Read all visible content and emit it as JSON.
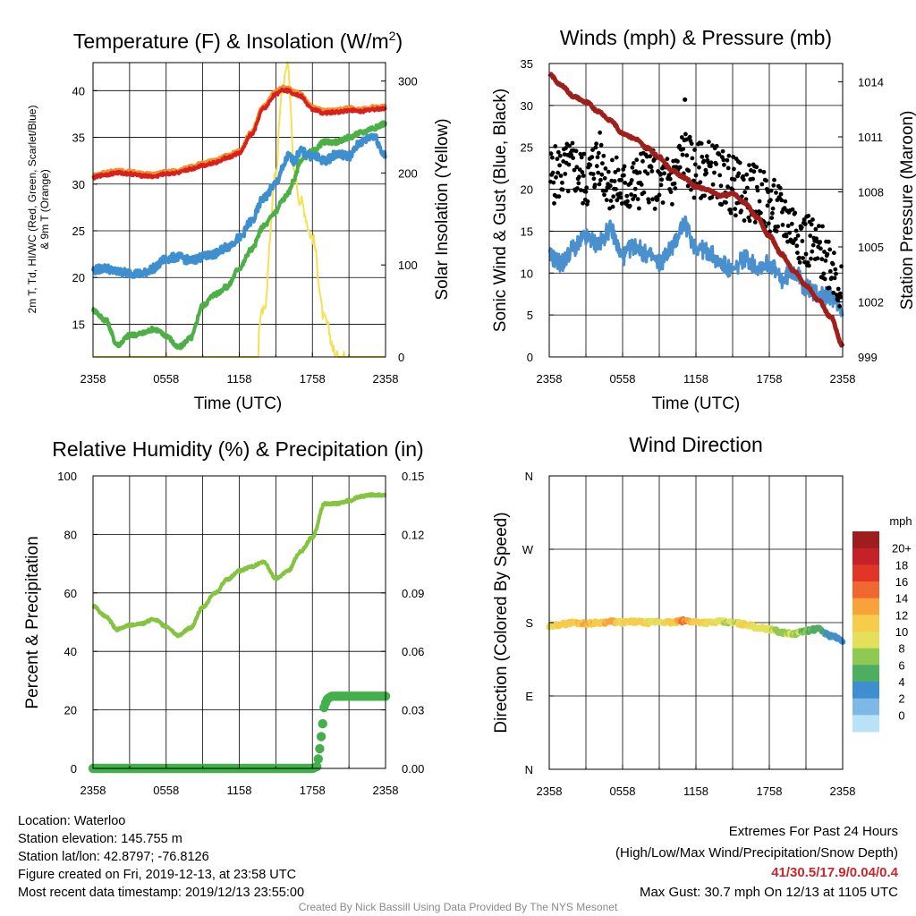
{
  "chart_data": [
    {
      "type": "line",
      "title": "Temperature (F) & Insolation (W/m²)",
      "ylabel": "2m T, T_d, HI/WC (Red, Green, Scarlet/Blue) & 9m T (Orange)",
      "ylabel_line1": "2m T, Td, HI/WC (Red, Green, Scarlet/Blue)",
      "ylabel_line2": "& 9m T (Orange)",
      "y2label": "Solar Insolation (Yellow)",
      "xlabel": "Time (UTC)",
      "x_ticks": [
        "2358",
        "0558",
        "1158",
        "1758",
        "2358"
      ],
      "ylim": [
        11.5,
        43
      ],
      "y2lim": [
        0,
        320
      ],
      "y_ticks": [
        15,
        20,
        25,
        30,
        35,
        40
      ],
      "y2_ticks": [
        0,
        100,
        200,
        300
      ],
      "x_hours": [
        0,
        1,
        2,
        3,
        4,
        5,
        6,
        7,
        8,
        9,
        10,
        11,
        12,
        13,
        14,
        15,
        15.5,
        16,
        16.5,
        17,
        18,
        19,
        20,
        21,
        22,
        23,
        24
      ],
      "series": [
        {
          "key": "t9m",
          "color": "#f4902b",
          "axis": "left",
          "values": [
            30.9,
            31.2,
            31.4,
            31.3,
            31.1,
            31.0,
            31.3,
            31.4,
            31.8,
            32.2,
            32.5,
            33.0,
            33.5,
            35.5,
            38.3,
            39.8,
            40.3,
            40.2,
            39.9,
            39.6,
            38.2,
            37.8,
            37.9,
            38.1,
            38.0,
            38.2,
            38.3
          ]
        },
        {
          "key": "t2m",
          "color": "#d8211e",
          "axis": "left",
          "values": [
            30.7,
            31.0,
            31.2,
            31.1,
            30.9,
            30.8,
            31.1,
            31.2,
            31.6,
            32.0,
            32.3,
            32.8,
            33.3,
            35.3,
            38.1,
            39.6,
            40.1,
            40.0,
            39.7,
            39.4,
            38.0,
            37.6,
            37.7,
            37.9,
            37.8,
            38.0,
            38.1
          ]
        },
        {
          "key": "hiwc",
          "color": "#3e8fcf",
          "axis": "left",
          "values": [
            20.8,
            21.0,
            20.6,
            20.5,
            20.4,
            21.0,
            22.0,
            22.2,
            21.8,
            22.2,
            22.5,
            23.3,
            24.2,
            26.0,
            28.5,
            30.0,
            31.5,
            33.0,
            32.5,
            33.5,
            33.0,
            32.5,
            33.2,
            33.0,
            34.5,
            35.2,
            33.0
          ]
        },
        {
          "key": "td",
          "color": "#4db046",
          "axis": "left",
          "values": [
            16.5,
            15.5,
            12.8,
            13.8,
            14.0,
            14.5,
            13.8,
            12.5,
            13.5,
            17.0,
            18.2,
            19.0,
            21.0,
            23.0,
            25.5,
            27.0,
            28.2,
            29.0,
            30.5,
            32.5,
            33.5,
            34.5,
            34.5,
            35.0,
            35.5,
            36.0,
            36.5
          ]
        },
        {
          "key": "solar",
          "color": "#f5e154",
          "axis": "right",
          "values": [
            0,
            0,
            0,
            0,
            0,
            0,
            0,
            0,
            0,
            0,
            0,
            0,
            0,
            0,
            50,
            200,
            290,
            320,
            200,
            170,
            130,
            40,
            0,
            0,
            0,
            0,
            0
          ]
        }
      ]
    },
    {
      "type": "line",
      "title": "Winds (mph) & Pressure (mb)",
      "ylabel": "Sonic Wind & Gust (Blue, Black)",
      "y2label": "Station Pressure (Maroon)",
      "xlabel": "Time (UTC)",
      "x_ticks": [
        "2358",
        "0558",
        "1158",
        "1758",
        "2358"
      ],
      "ylim": [
        0,
        35
      ],
      "y2lim": [
        999,
        1015
      ],
      "y_ticks": [
        0,
        5,
        10,
        15,
        20,
        25,
        30,
        35
      ],
      "y2_ticks": [
        999,
        1002,
        1005,
        1008,
        1011,
        1014
      ],
      "x_hours": [
        0,
        1,
        2,
        3,
        4,
        5,
        6,
        7,
        8,
        9,
        10,
        11,
        12,
        13,
        14,
        15,
        16,
        17,
        18,
        19,
        20,
        21,
        22,
        23,
        24
      ],
      "series": [
        {
          "key": "pressure",
          "color": "#a01f1b",
          "axis": "right",
          "values": [
            1014.4,
            1013.8,
            1013.2,
            1012.9,
            1012.4,
            1011.9,
            1011.2,
            1010.9,
            1010.4,
            1009.9,
            1009.2,
            1008.8,
            1008.3,
            1008.1,
            1007.8,
            1007.9,
            1007.4,
            1006.6,
            1005.6,
            1004.6,
            1003.7,
            1002.9,
            1002.1,
            1001.2,
            999.6
          ]
        },
        {
          "key": "wind",
          "color": "#4a90cf",
          "axis": "left",
          "values": [
            12.0,
            11.2,
            13.0,
            14.2,
            13.5,
            15.2,
            12.0,
            13.3,
            12.2,
            11.2,
            13.0,
            15.8,
            13.2,
            12.5,
            11.2,
            10.2,
            11.8,
            10.8,
            11.2,
            9.2,
            10.3,
            8.2,
            7.6,
            7.2,
            5.8
          ]
        },
        {
          "key": "gust",
          "color": "#000000",
          "axis": "left",
          "style": "points",
          "values": [
            21.5,
            22.0,
            22.5,
            21.0,
            23.5,
            21.0,
            20.0,
            20.5,
            22.0,
            20.5,
            21.0,
            24.0,
            22.0,
            22.5,
            21.5,
            20.5,
            19.5,
            19.5,
            18.0,
            17.0,
            15.5,
            14.0,
            12.5,
            11.5,
            8.0
          ]
        }
      ],
      "max_gust_point": {
        "hour": 11.1,
        "value": 30.7
      }
    },
    {
      "type": "line",
      "title": "Relative Humidity (%) & Precipitation (in)",
      "ylabel": "Percent & Precipitation",
      "ylim": [
        0,
        100
      ],
      "y2lim": [
        0,
        0.15
      ],
      "y_ticks": [
        0,
        20,
        40,
        60,
        80,
        100
      ],
      "y2_ticks": [
        "0.00",
        "0.03",
        "0.06",
        "0.09",
        "0.12",
        "0.15"
      ],
      "x_ticks": [
        "2358",
        "0558",
        "1158",
        "1758",
        "2358"
      ],
      "x_hours": [
        0,
        1,
        2,
        3,
        4,
        5,
        6,
        7,
        8,
        9,
        10,
        11,
        12,
        13,
        14,
        15,
        16,
        17,
        18,
        19,
        20,
        21,
        22,
        23,
        24
      ],
      "series": [
        {
          "key": "rh",
          "color": "#85c440",
          "axis": "left",
          "values": [
            55.5,
            52.0,
            47.5,
            49.0,
            49.5,
            51.0,
            48.5,
            45.5,
            48.0,
            55.0,
            60.0,
            64.5,
            67.5,
            69.0,
            70.5,
            65.0,
            67.5,
            74.0,
            79.0,
            90.5,
            90.5,
            91.5,
            93.0,
            93.5,
            93.5
          ]
        },
        {
          "key": "precip",
          "color": "#43b04b",
          "axis": "right",
          "style": "points",
          "x": [
            0,
            1,
            2,
            3,
            4,
            5,
            6,
            7,
            8,
            9,
            10,
            11,
            12,
            13,
            14,
            15,
            16,
            17,
            18,
            18.4,
            18.55,
            18.7,
            18.85,
            19.0,
            19.3,
            19.6,
            20,
            21,
            22,
            23,
            24
          ],
          "values": [
            0,
            0,
            0,
            0,
            0,
            0,
            0,
            0,
            0,
            0,
            0,
            0,
            0,
            0,
            0,
            0,
            0,
            0,
            0,
            0.001,
            0.008,
            0.016,
            0.023,
            0.033,
            0.036,
            0.037,
            0.037,
            0.037,
            0.037,
            0.037,
            0.037
          ]
        }
      ]
    },
    {
      "type": "scatter",
      "title": "Wind Direction",
      "ylabel": "Direction (Colored By Speed)",
      "y_ticks": [
        "N",
        "E",
        "S",
        "W",
        "N"
      ],
      "ylim_degrees": [
        0,
        360
      ],
      "x_ticks": [
        "2358",
        "0558",
        "1158",
        "1758",
        "2358"
      ],
      "x_hours": [
        0,
        1,
        2,
        3,
        4,
        5,
        6,
        7,
        8,
        9,
        10,
        11,
        12,
        13,
        14,
        15,
        16,
        17,
        18,
        19,
        20,
        21,
        22,
        23,
        24
      ],
      "direction_degrees": [
        175,
        178,
        180,
        179,
        180,
        181,
        180,
        181,
        180,
        181,
        180,
        182,
        181,
        180,
        181,
        180,
        178,
        174,
        172,
        168,
        166,
        170,
        172,
        164,
        158
      ],
      "speed_mph": [
        12,
        13,
        13,
        14,
        13,
        15,
        12,
        13,
        12,
        11,
        13,
        16,
        13,
        12,
        11,
        10,
        12,
        11,
        11,
        9,
        10,
        8,
        7,
        6,
        5
      ],
      "colorbar": {
        "title": "mph",
        "labels": [
          "20+",
          "18",
          "16",
          "14",
          "12",
          "10",
          "8",
          "6",
          "4",
          "2",
          "0"
        ],
        "colors": [
          "#9e1d1f",
          "#c42128",
          "#e03527",
          "#f0672f",
          "#f7a23a",
          "#f6cc4a",
          "#e4e05b",
          "#8fc951",
          "#4fad62",
          "#3f8ed0",
          "#7db8e6",
          "#b9e2f6"
        ]
      }
    }
  ],
  "station_info": {
    "location": "Location: Waterloo",
    "elevation": "Station elevation: 145.755 m",
    "latlon": "Station lat/lon: 42.8797; -76.8126",
    "created": "Figure created on Fri, 2019-12-13, at 23:58 UTC",
    "recent": "Most recent data timestamp: 2019/12/13 23:55:00"
  },
  "extremes": {
    "title": "Extremes For Past 24 Hours",
    "subtitle": "(High/Low/Max Wind/Precipitation/Snow Depth)",
    "values": "41/30.5/17.9/0.04/0.4",
    "max_gust": "Max Gust: 30.7 mph On 12/13 at 1105 UTC",
    "values_color": "#c9282b"
  },
  "credit": "Created By Nick Bassill Using Data Provided By The NYS Mesonet"
}
